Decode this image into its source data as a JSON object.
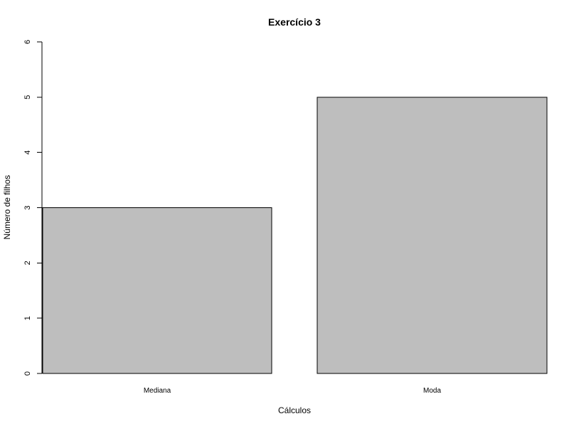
{
  "chart_data": {
    "type": "bar",
    "title": "Exercício 3",
    "xlabel": "Cálculos",
    "ylabel": "Número de filhos",
    "categories": [
      "Mediana",
      "Moda"
    ],
    "values": [
      3,
      5
    ],
    "ylim": [
      0,
      6
    ],
    "yticks": [
      "0",
      "1",
      "2",
      "3",
      "4",
      "5",
      "6"
    ],
    "grid": false,
    "legend": "none",
    "colors": {
      "bar_fill": "#bebebe",
      "bar_stroke": "#000000",
      "axis": "#000000",
      "background": "#ffffff"
    }
  }
}
